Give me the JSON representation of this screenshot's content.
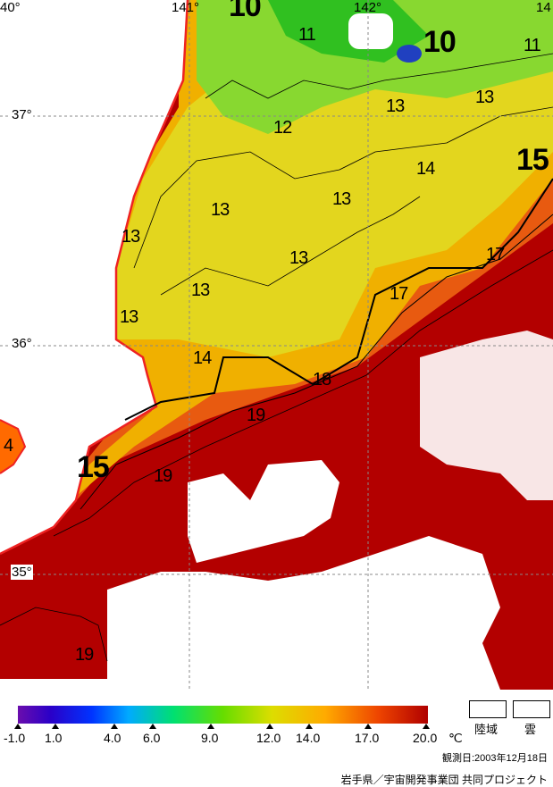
{
  "longitudes": [
    "40°",
    "141°",
    "142°",
    "14"
  ],
  "latitudes": [
    "37°",
    "36°",
    "35°"
  ],
  "contour_labels": [
    "10",
    "11",
    "10",
    "11",
    "13",
    "13",
    "12",
    "14",
    "15",
    "13",
    "13",
    "13",
    "13",
    "13",
    "13",
    "17",
    "17",
    "14",
    "18",
    "19",
    "15",
    "19",
    "19",
    "4"
  ],
  "legend": {
    "ticks": [
      "-1.0",
      "1.0",
      "4.0",
      "6.0",
      "9.0",
      "12.0",
      "14.0",
      "17.0",
      "20.0"
    ],
    "unit": "℃",
    "land_label": "陸域",
    "cloud_label": "雲",
    "scale_colors": [
      "#6a0dad",
      "#0033ff",
      "#00aaff",
      "#00e070",
      "#66dd00",
      "#dddd00",
      "#ffaa00",
      "#ee4400",
      "#b00000"
    ]
  },
  "observation_date": "観測日:2003年12月18日",
  "credit": "岩手県／宇宙開発事業団 共同プロジェクト"
}
